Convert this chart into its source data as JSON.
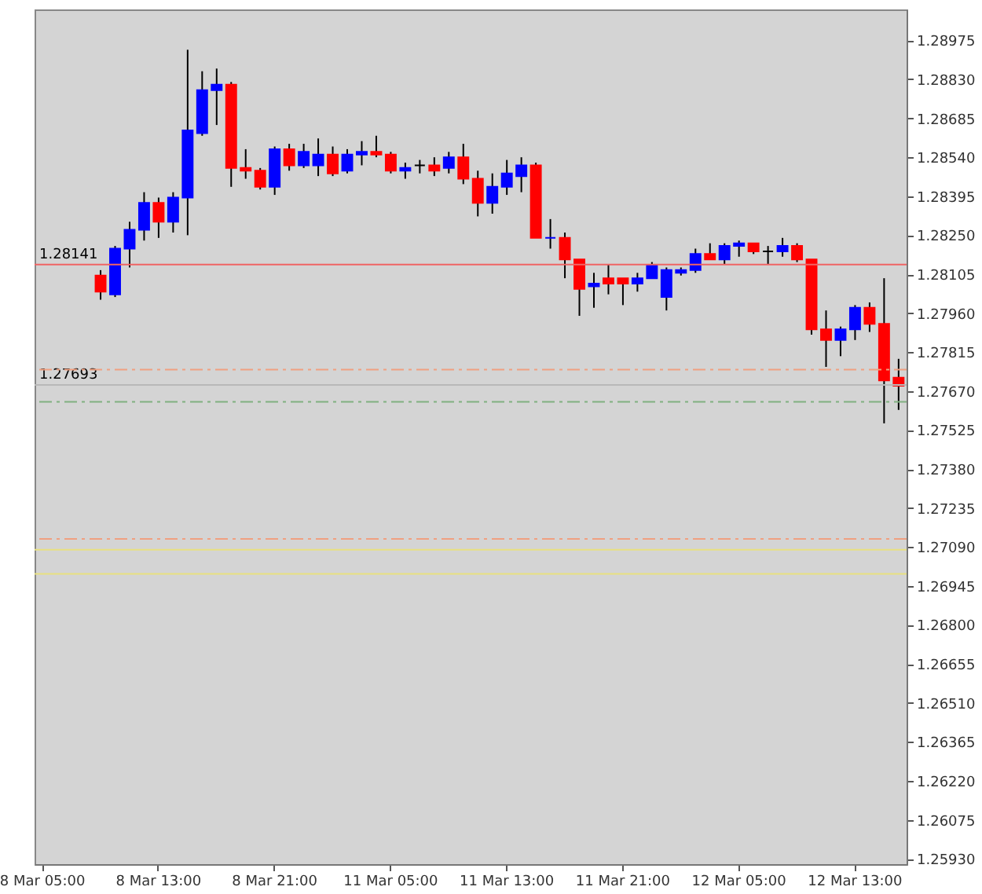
{
  "chart_data": {
    "type": "candlestick",
    "categories": [
      "8 Mar 05:00",
      null,
      null,
      null,
      null,
      null,
      null,
      null,
      "8 Mar 13:00",
      null,
      null,
      null,
      null,
      null,
      null,
      null,
      "8 Mar 21:00",
      null,
      null,
      null,
      null,
      null,
      null,
      null,
      "11 Mar 05:00",
      null,
      null,
      null,
      null,
      null,
      null,
      null,
      "11 Mar 13:00",
      null,
      null,
      null,
      null,
      null,
      null,
      null,
      "11 Mar 21:00",
      null,
      null,
      null,
      null,
      null,
      null,
      null,
      "12 Mar 05:00",
      null,
      null,
      null,
      null,
      null,
      null,
      null,
      "12 Mar 13:00",
      null,
      null,
      null
    ],
    "ohlc": [
      null,
      null,
      null,
      null,
      [
        1.281,
        1.2812,
        1.2801,
        1.2804
      ],
      [
        1.2803,
        1.2821,
        1.2802,
        1.282
      ],
      [
        1.282,
        1.283,
        1.2813,
        1.2827
      ],
      [
        1.2827,
        1.2841,
        1.2823,
        1.2837
      ],
      [
        1.2837,
        1.2839,
        1.2824,
        1.283
      ],
      [
        1.283,
        1.2841,
        1.2826,
        1.2839
      ],
      [
        1.2839,
        1.2894,
        1.2825,
        1.2864
      ],
      [
        1.2863,
        1.2886,
        1.2862,
        1.2879
      ],
      [
        1.2879,
        1.2887,
        1.2866,
        1.2881
      ],
      [
        1.2881,
        1.2882,
        1.2843,
        1.285
      ],
      [
        1.285,
        1.2857,
        1.2846,
        1.2849
      ],
      [
        1.2849,
        1.285,
        1.2842,
        1.2843
      ],
      [
        1.2843,
        1.2858,
        1.284,
        1.2857
      ],
      [
        1.2857,
        1.2859,
        1.2849,
        1.2851
      ],
      [
        1.2851,
        1.2859,
        1.285,
        1.2856
      ],
      [
        1.2851,
        1.2861,
        1.2847,
        1.2855
      ],
      [
        1.2855,
        1.2858,
        1.2847,
        1.2848
      ],
      [
        1.2849,
        1.2857,
        1.2848,
        1.2855
      ],
      [
        1.2855,
        1.286,
        1.2851,
        1.2856
      ],
      [
        1.2856,
        1.2862,
        1.2854,
        1.2855
      ],
      [
        1.2855,
        1.2856,
        1.2848,
        1.2849
      ],
      [
        1.2849,
        1.2852,
        1.2846,
        1.285
      ],
      [
        1.2851,
        1.2853,
        1.2848,
        1.2851
      ],
      [
        1.2851,
        1.2854,
        1.2847,
        1.2849
      ],
      [
        1.285,
        1.2856,
        1.2848,
        1.2854
      ],
      [
        1.2854,
        1.2859,
        1.2844,
        1.2846
      ],
      [
        1.2846,
        1.2849,
        1.2832,
        1.2837
      ],
      [
        1.2837,
        1.2848,
        1.2833,
        1.2843
      ],
      [
        1.2843,
        1.2853,
        1.284,
        1.2848
      ],
      [
        1.2847,
        1.2854,
        1.2841,
        1.2851
      ],
      [
        1.2851,
        1.2852,
        1.2824,
        1.2824
      ],
      [
        1.2824,
        1.2831,
        1.282,
        1.2824
      ],
      [
        1.2824,
        1.2826,
        1.2809,
        1.2816
      ],
      [
        1.2816,
        1.2816,
        1.2795,
        1.2805
      ],
      [
        1.2806,
        1.2811,
        1.2798,
        1.2807
      ],
      [
        1.2809,
        1.2814,
        1.2803,
        1.2807
      ],
      [
        1.2809,
        1.2809,
        1.2799,
        1.2807
      ],
      [
        1.2807,
        1.2811,
        1.2804,
        1.2809
      ],
      [
        1.2809,
        1.2815,
        1.2809,
        1.2814
      ],
      [
        1.2802,
        1.2813,
        1.2797,
        1.2812
      ],
      [
        1.2811,
        1.2813,
        1.281,
        1.2812
      ],
      [
        1.2812,
        1.282,
        1.2811,
        1.2818
      ],
      [
        1.2818,
        1.2822,
        1.2816,
        1.2816
      ],
      [
        1.2816,
        1.2822,
        1.2814,
        1.2821
      ],
      [
        1.2821,
        1.2823,
        1.2817,
        1.2822
      ],
      [
        1.2822,
        1.2822,
        1.2818,
        1.2819
      ],
      [
        1.2819,
        1.2821,
        1.2814,
        1.2819
      ],
      [
        1.2819,
        1.2824,
        1.2817,
        1.2821
      ],
      [
        1.2821,
        1.2822,
        1.2815,
        1.2816
      ],
      [
        1.2816,
        1.2816,
        1.2788,
        1.279
      ],
      [
        1.279,
        1.2797,
        1.2776,
        1.2786
      ],
      [
        1.2786,
        1.2791,
        1.278,
        1.279
      ],
      [
        1.279,
        1.2799,
        1.2786,
        1.2798
      ],
      [
        1.2798,
        1.28,
        1.2789,
        1.2792
      ],
      [
        1.2792,
        1.2809,
        1.2755,
        1.2771
      ],
      [
        1.2772,
        1.2779,
        1.276,
        1.2769
      ]
    ],
    "colors": [
      null,
      null,
      null,
      null,
      "#ff0000",
      "#0000ff",
      "#0000ff",
      "#0000ff",
      "#ff0000",
      "#0000ff",
      "#0000ff",
      "#0000ff",
      "#0000ff",
      "#ff0000",
      "#ff0000",
      "#ff0000",
      "#0000ff",
      "#ff0000",
      "#0000ff",
      "#0000ff",
      "#ff0000",
      "#0000ff",
      "#0000ff",
      "#ff0000",
      "#ff0000",
      "#0000ff",
      "#000000",
      "#ff0000",
      "#0000ff",
      "#ff0000",
      "#ff0000",
      "#0000ff",
      "#0000ff",
      "#0000ff",
      "#ff0000",
      "#0000ff",
      "#ff0000",
      "#ff0000",
      "#0000ff",
      "#ff0000",
      "#ff0000",
      "#0000ff",
      "#0000ff",
      "#0000ff",
      "#0000ff",
      "#0000ff",
      "#ff0000",
      "#0000ff",
      "#0000ff",
      "#ff0000",
      "#000000",
      "#0000ff",
      "#ff0000",
      "#ff0000",
      "#ff0000",
      "#0000ff",
      "#0000ff",
      "#ff0000",
      "#ff0000",
      "#ff0000"
    ],
    "ylim": [
      1.2591,
      1.2909
    ],
    "yticks": [
      1.28975,
      {
        "value": 1.2883,
        "label": "1.28830"
      },
      1.28685,
      {
        "value": 1.2854,
        "label": "1.28540"
      },
      1.28395,
      {
        "value": 1.2825,
        "label": "1.28250"
      },
      1.28105,
      {
        "value": 1.2796,
        "label": "1.27960"
      },
      1.27815,
      {
        "value": 1.2767,
        "label": "1.27670"
      },
      1.27525,
      {
        "value": 1.2738,
        "label": "1.27380"
      },
      1.27235,
      {
        "value": 1.2709,
        "label": "1.27090"
      },
      1.26945,
      {
        "value": 1.268,
        "label": "1.26800"
      },
      1.26655,
      {
        "value": 1.2651,
        "label": "1.26510"
      },
      1.26365,
      {
        "value": 1.2622,
        "label": "1.26220"
      },
      1.26075,
      {
        "value": 1.2593,
        "label": "1.25930"
      }
    ],
    "ref_lines": [
      {
        "axis": "y",
        "value": 1.28141,
        "label": "1.28141",
        "color": "#f06464",
        "line_style": "solid"
      },
      {
        "axis": "y",
        "value": 1.27693,
        "label": "1.27693",
        "color": "#b8b8b8",
        "line_style": "solid"
      },
      {
        "axis": "y",
        "value": 1.2775,
        "color": "#f0a080",
        "line_style": "dashed"
      },
      {
        "axis": "y",
        "value": 1.2763,
        "color": "#80b080",
        "line_style": "dashed"
      },
      {
        "axis": "y",
        "value": 1.2712,
        "color": "#f0a080",
        "line_style": "dashed"
      },
      {
        "axis": "y",
        "value": 1.2708,
        "color": "#e8e080",
        "line_style": "solid"
      },
      {
        "axis": "y",
        "value": 1.2699,
        "color": "#e8e080",
        "line_style": "solid"
      }
    ],
    "grid": false
  }
}
